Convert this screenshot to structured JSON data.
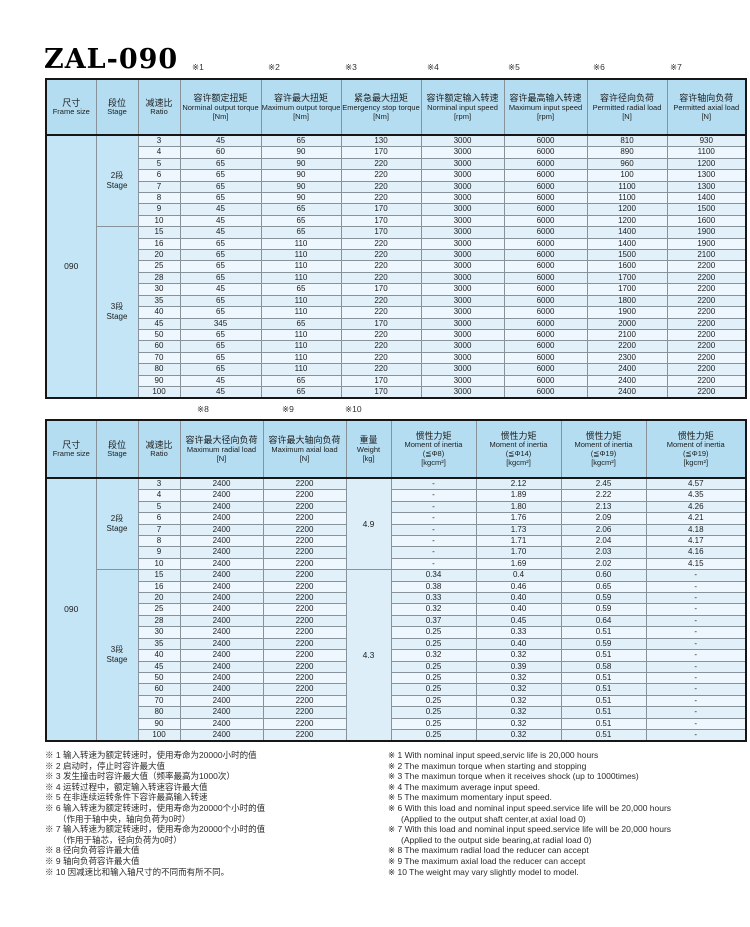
{
  "title": "ZAL-090",
  "table1": {
    "frame_size": "090",
    "ref_marks": [
      "※1",
      "※2",
      "※3",
      "※4",
      "※5",
      "※6",
      "※7"
    ],
    "headers": [
      {
        "cn": "尺寸",
        "en": "Frame size"
      },
      {
        "cn": "段位",
        "en": "Stage"
      },
      {
        "cn": "减速比",
        "en": "Ratio"
      },
      {
        "cn": "容许额定扭矩",
        "en": "Norminal output torque",
        "unit": "[Nm]"
      },
      {
        "cn": "容许最大扭矩",
        "en": "Maximum output torque",
        "unit": "[Nm]"
      },
      {
        "cn": "紧急最大扭矩",
        "en": "Emergency stop torque",
        "unit": "[Nm]"
      },
      {
        "cn": "容许额定输入转速",
        "en": "Norminal input speed",
        "unit": "[rpm]"
      },
      {
        "cn": "容许最高输入转速",
        "en": "Maximum input speed",
        "unit": "[rpm]"
      },
      {
        "cn": "容许径向负荷",
        "en": "Permitted radial load",
        "unit": "[N]"
      },
      {
        "cn": "容许轴向负荷",
        "en": "Permitted axial load",
        "unit": "[N]"
      }
    ],
    "groups": [
      {
        "stage_cn": "2段",
        "stage_en": "Stage",
        "rows": [
          [
            "3",
            "45",
            "65",
            "130",
            "3000",
            "6000",
            "810",
            "930"
          ],
          [
            "4",
            "60",
            "90",
            "170",
            "3000",
            "6000",
            "890",
            "1100"
          ],
          [
            "5",
            "65",
            "90",
            "220",
            "3000",
            "6000",
            "960",
            "1200"
          ],
          [
            "6",
            "65",
            "90",
            "220",
            "3000",
            "6000",
            "100",
            "1300"
          ],
          [
            "7",
            "65",
            "90",
            "220",
            "3000",
            "6000",
            "1100",
            "1300"
          ],
          [
            "8",
            "65",
            "90",
            "220",
            "3000",
            "6000",
            "1100",
            "1400"
          ],
          [
            "9",
            "45",
            "65",
            "170",
            "3000",
            "6000",
            "1200",
            "1500"
          ],
          [
            "10",
            "45",
            "65",
            "170",
            "3000",
            "6000",
            "1200",
            "1600"
          ]
        ]
      },
      {
        "stage_cn": "3段",
        "stage_en": "Stage",
        "rows": [
          [
            "15",
            "45",
            "65",
            "170",
            "3000",
            "6000",
            "1400",
            "1900"
          ],
          [
            "16",
            "65",
            "110",
            "220",
            "3000",
            "6000",
            "1400",
            "1900"
          ],
          [
            "20",
            "65",
            "110",
            "220",
            "3000",
            "6000",
            "1500",
            "2100"
          ],
          [
            "25",
            "65",
            "110",
            "220",
            "3000",
            "6000",
            "1600",
            "2200"
          ],
          [
            "28",
            "65",
            "110",
            "220",
            "3000",
            "6000",
            "1700",
            "2200"
          ],
          [
            "30",
            "45",
            "65",
            "170",
            "3000",
            "6000",
            "1700",
            "2200"
          ],
          [
            "35",
            "65",
            "110",
            "220",
            "3000",
            "6000",
            "1800",
            "2200"
          ],
          [
            "40",
            "65",
            "110",
            "220",
            "3000",
            "6000",
            "1900",
            "2200"
          ],
          [
            "45",
            "345",
            "65",
            "170",
            "3000",
            "6000",
            "2000",
            "2200"
          ],
          [
            "50",
            "65",
            "110",
            "220",
            "3000",
            "6000",
            "2100",
            "2200"
          ],
          [
            "60",
            "65",
            "110",
            "220",
            "3000",
            "6000",
            "2200",
            "2200"
          ],
          [
            "70",
            "65",
            "110",
            "220",
            "3000",
            "6000",
            "2300",
            "2200"
          ],
          [
            "80",
            "65",
            "110",
            "220",
            "3000",
            "6000",
            "2400",
            "2200"
          ],
          [
            "90",
            "45",
            "65",
            "170",
            "3000",
            "6000",
            "2400",
            "2200"
          ],
          [
            "100",
            "45",
            "65",
            "170",
            "3000",
            "6000",
            "2400",
            "2200"
          ]
        ]
      }
    ]
  },
  "table2": {
    "frame_size": "090",
    "ref_marks": [
      "※8",
      "※9",
      "※10"
    ],
    "headers": [
      {
        "cn": "尺寸",
        "en": "Frame size"
      },
      {
        "cn": "段位",
        "en": "Stage"
      },
      {
        "cn": "减速比",
        "en": "Ratio"
      },
      {
        "cn": "容许最大径向负荷",
        "en": "Maximum radial load",
        "unit": "[N]"
      },
      {
        "cn": "容许最大轴向负荷",
        "en": "Maximum axial load",
        "unit": "[N]"
      },
      {
        "cn": "重量",
        "en": "Weight",
        "unit": "[kg]"
      },
      {
        "cn": "惯性力矩",
        "en": "Moment of inertia",
        "sub": "(≦Φ8)",
        "unit": "[kgcm²]"
      },
      {
        "cn": "惯性力矩",
        "en": "Moment of inertia",
        "sub": "(≦Φ14)",
        "unit": "[kgcm²]"
      },
      {
        "cn": "惯性力矩",
        "en": "Moment of inertia",
        "sub": "(≦Φ19)",
        "unit": "[kgcm²]"
      },
      {
        "cn": "惯性力矩",
        "en": "Moment of inertia",
        "sub": "(≦Φ19)",
        "unit": "[kgcm²]"
      }
    ],
    "groups": [
      {
        "stage_cn": "2段",
        "stage_en": "Stage",
        "weight": "4.9",
        "rows": [
          [
            "3",
            "2400",
            "2200",
            "-",
            "2.12",
            "2.45",
            "4.57"
          ],
          [
            "4",
            "2400",
            "2200",
            "-",
            "1.89",
            "2.22",
            "4.35"
          ],
          [
            "5",
            "2400",
            "2200",
            "-",
            "1.80",
            "2.13",
            "4.26"
          ],
          [
            "6",
            "2400",
            "2200",
            "-",
            "1.76",
            "2.09",
            "4.21"
          ],
          [
            "7",
            "2400",
            "2200",
            "-",
            "1.73",
            "2.06",
            "4.18"
          ],
          [
            "8",
            "2400",
            "2200",
            "-",
            "1.71",
            "2.04",
            "4.17"
          ],
          [
            "9",
            "2400",
            "2200",
            "-",
            "1.70",
            "2.03",
            "4.16"
          ],
          [
            "10",
            "2400",
            "2200",
            "-",
            "1.69",
            "2.02",
            "4.15"
          ]
        ]
      },
      {
        "stage_cn": "3段",
        "stage_en": "Stage",
        "weight": "4.3",
        "rows": [
          [
            "15",
            "2400",
            "2200",
            "0.34",
            "0.4",
            "0.60",
            "-"
          ],
          [
            "16",
            "2400",
            "2200",
            "0.38",
            "0.46",
            "0.65",
            "-"
          ],
          [
            "20",
            "2400",
            "2200",
            "0.33",
            "0.40",
            "0.59",
            "-"
          ],
          [
            "25",
            "2400",
            "2200",
            "0.32",
            "0.40",
            "0.59",
            "-"
          ],
          [
            "28",
            "2400",
            "2200",
            "0.37",
            "0.45",
            "0.64",
            "-"
          ],
          [
            "30",
            "2400",
            "2200",
            "0.25",
            "0.33",
            "0.51",
            "-"
          ],
          [
            "35",
            "2400",
            "2200",
            "0.25",
            "0.40",
            "0.59",
            "-"
          ],
          [
            "40",
            "2400",
            "2200",
            "0.32",
            "0.32",
            "0.51",
            "-"
          ],
          [
            "45",
            "2400",
            "2200",
            "0.25",
            "0.39",
            "0.58",
            "-"
          ],
          [
            "50",
            "2400",
            "2200",
            "0.25",
            "0.32",
            "0.51",
            "-"
          ],
          [
            "60",
            "2400",
            "2200",
            "0.25",
            "0.32",
            "0.51",
            "-"
          ],
          [
            "70",
            "2400",
            "2200",
            "0.25",
            "0.32",
            "0.51",
            "-"
          ],
          [
            "80",
            "2400",
            "2200",
            "0.25",
            "0.32",
            "0.51",
            "-"
          ],
          [
            "90",
            "2400",
            "2200",
            "0.25",
            "0.32",
            "0.51",
            "-"
          ],
          [
            "100",
            "2400",
            "2200",
            "0.25",
            "0.32",
            "0.51",
            "-"
          ]
        ]
      }
    ]
  },
  "footnotes": {
    "cn": [
      {
        "text": "※  1 输入转速为额定转速时，使用寿命为20000小时的值"
      },
      {
        "text": "※  2 启动时，停止时容许最大值"
      },
      {
        "text": "※  3 发生撞击时容许最大值（频率最高为1000次）"
      },
      {
        "text": "※  4 运转过程中，额定输入转速容许最大值"
      },
      {
        "text": "※  5 在非连续运转条件下容许最高输入转速"
      },
      {
        "text": "※  6 输入转速为额定转速时，使用寿命为20000个小时的值"
      },
      {
        "text": "（作用于轴中央，轴向负荷为0时）",
        "indent": true
      },
      {
        "text": "※  7 输入转速为额定转速时，使用寿命为20000个小时的值"
      },
      {
        "text": "（作用于轴芯，径向负荷为0时）",
        "indent": true
      },
      {
        "text": "※  8 径向负荷容许最大值"
      },
      {
        "text": "※  9 轴向负荷容许最大值"
      },
      {
        "text": "※ 10 因减速比和输入轴尺寸的不同而有所不同。"
      }
    ],
    "en": [
      {
        "text": "※  1 With nominal input speed,servic life is 20,000 hours"
      },
      {
        "text": "※  2 The maximun torque when starting and stopping"
      },
      {
        "text": "※  3 The maximun torque when it receives shock (up to 1000times)"
      },
      {
        "text": "※  4 The maximum average input speed."
      },
      {
        "text": "※  5 The maximum momentary input speed."
      },
      {
        "text": "※  6 With this load and nominal input speed.service life will be 20,000 hours"
      },
      {
        "text": "(Applied to the output shaft center,at axial load 0)",
        "indent": true
      },
      {
        "text": "※  7 With this load and nominal input speed.service life will be 20,000 hours"
      },
      {
        "text": "(Applied to the output side bearing,at radial load 0)",
        "indent": true
      },
      {
        "text": "※  8 The maximum radial load the reducer can accept"
      },
      {
        "text": "※  9 The maximum axial load the reducer can accept"
      },
      {
        "text": "※ 10 The weight may vary  slightly  model to model."
      }
    ]
  }
}
